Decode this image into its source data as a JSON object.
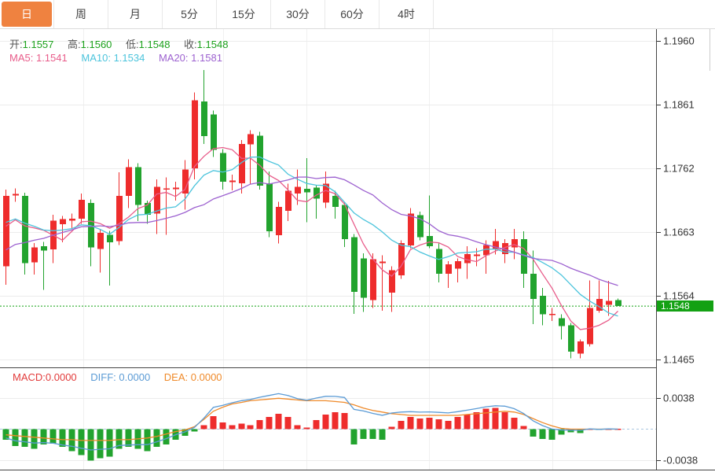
{
  "tabs": {
    "items": [
      {
        "label": "日",
        "active": true
      },
      {
        "label": "周",
        "active": false
      },
      {
        "label": "月",
        "active": false
      },
      {
        "label": "5分",
        "active": false
      },
      {
        "label": "15分",
        "active": false
      },
      {
        "label": "30分",
        "active": false
      },
      {
        "label": "60分",
        "active": false
      },
      {
        "label": "4时",
        "active": false
      }
    ]
  },
  "legend": {
    "open_label": "开:",
    "open": "1.1557",
    "high_label": "高:",
    "high": "1.1560",
    "low_label": "低:",
    "low": "1.1548",
    "close_label": "收:",
    "close": "1.1548",
    "ma5_label": "MA5:",
    "ma5": "1.1541",
    "ma10_label": "MA10:",
    "ma10": "1.1534",
    "ma20_label": "MA20:",
    "ma20": "1.1581"
  },
  "macd_legend": {
    "macd_label": "MACD:",
    "macd": "0.0000",
    "diff_label": "DIFF:",
    "diff": "0.0000",
    "dea_label": "DEA:",
    "dea": "0.0000"
  },
  "price_marker": {
    "value": "1.1548"
  },
  "colors": {
    "up": "#ee2c2c",
    "down": "#22a32e",
    "ma5": "#e85c8a",
    "ma10": "#4cc4dc",
    "ma20": "#9d62d0",
    "diff_line": "#5b9bd5",
    "dea_line": "#ef8a2a",
    "price": "#13a113",
    "tab_active": "#ef8240",
    "axis_text": "#333333",
    "grid": "#ececec",
    "dark_line": "#444444",
    "zero_dash": "#a9c7e0"
  },
  "chart_data": {
    "type": "candlestick",
    "title": "",
    "y_ticks": [
      1.196,
      1.1861,
      1.1762,
      1.1663,
      1.1564,
      1.1465
    ],
    "price_line": 1.1548,
    "ma_periods": [
      5,
      10,
      20
    ],
    "ma_seed_closes": [
      1.155,
      1.1558,
      1.1566,
      1.1575,
      1.1585,
      1.1595,
      1.1605,
      1.1615,
      1.163,
      1.1645,
      1.1668,
      1.168,
      1.1688,
      1.1692,
      1.1692,
      1.1672,
      1.1662,
      1.1655,
      1.1652
    ],
    "candles": [
      [
        1.161,
        1.1729,
        1.1581,
        1.1719
      ],
      [
        1.172,
        1.1731,
        1.171,
        1.1722
      ],
      [
        1.1719,
        1.1724,
        1.1597,
        1.1615
      ],
      [
        1.1616,
        1.1646,
        1.1597,
        1.1639
      ],
      [
        1.1641,
        1.1648,
        1.1573,
        1.1634
      ],
      [
        1.1636,
        1.169,
        1.1615,
        1.1681
      ],
      [
        1.1675,
        1.1688,
        1.1647,
        1.1683
      ],
      [
        1.1681,
        1.1692,
        1.1668,
        1.1684
      ],
      [
        1.1684,
        1.1723,
        1.1676,
        1.1713
      ],
      [
        1.1708,
        1.1714,
        1.161,
        1.1639
      ],
      [
        1.1637,
        1.1668,
        1.16,
        1.1662
      ],
      [
        1.1659,
        1.1665,
        1.158,
        1.1647
      ],
      [
        1.1649,
        1.1756,
        1.1643,
        1.1719
      ],
      [
        1.1719,
        1.1776,
        1.17,
        1.1764
      ],
      [
        1.1764,
        1.177,
        1.168,
        1.1705
      ],
      [
        1.1708,
        1.1712,
        1.1676,
        1.169
      ],
      [
        1.1692,
        1.1745,
        1.166,
        1.1733
      ],
      [
        1.1729,
        1.1748,
        1.1659,
        1.1731
      ],
      [
        1.173,
        1.1741,
        1.1712,
        1.1732
      ],
      [
        1.1723,
        1.1775,
        1.1698,
        1.176
      ],
      [
        1.1762,
        1.188,
        1.1745,
        1.1868
      ],
      [
        1.1866,
        1.1915,
        1.18,
        1.1812
      ],
      [
        1.1846,
        1.1852,
        1.178,
        1.1791
      ],
      [
        1.1786,
        1.1792,
        1.1729,
        1.1741
      ],
      [
        1.1741,
        1.1752,
        1.1728,
        1.1743
      ],
      [
        1.1739,
        1.1806,
        1.1723,
        1.18
      ],
      [
        1.1799,
        1.1821,
        1.1738,
        1.1815
      ],
      [
        1.1813,
        1.1819,
        1.1729,
        1.1735
      ],
      [
        1.1739,
        1.1757,
        1.1655,
        1.1664
      ],
      [
        1.1658,
        1.171,
        1.1645,
        1.1702
      ],
      [
        1.1696,
        1.1738,
        1.168,
        1.1727
      ],
      [
        1.1723,
        1.176,
        1.1705,
        1.1733
      ],
      [
        1.173,
        1.1778,
        1.1678,
        1.1725
      ],
      [
        1.1732,
        1.1736,
        1.1684,
        1.1715
      ],
      [
        1.1709,
        1.1757,
        1.17,
        1.1738
      ],
      [
        1.1719,
        1.1727,
        1.1684,
        1.1702
      ],
      [
        1.1705,
        1.171,
        1.164,
        1.1652
      ],
      [
        1.1655,
        1.166,
        1.1536,
        1.157
      ],
      [
        1.1622,
        1.163,
        1.1539,
        1.1561
      ],
      [
        1.1557,
        1.163,
        1.1545,
        1.1621
      ],
      [
        1.1615,
        1.1627,
        1.1541,
        1.1617
      ],
      [
        1.1569,
        1.161,
        1.1539,
        1.1604
      ],
      [
        1.1596,
        1.165,
        1.159,
        1.1646
      ],
      [
        1.1642,
        1.17,
        1.1638,
        1.1692
      ],
      [
        1.1689,
        1.1695,
        1.165,
        1.1655
      ],
      [
        1.1657,
        1.172,
        1.1638,
        1.1641
      ],
      [
        1.1637,
        1.1645,
        1.1585,
        1.1598
      ],
      [
        1.1598,
        1.1618,
        1.1576,
        1.1613
      ],
      [
        1.1606,
        1.1622,
        1.1585,
        1.1618
      ],
      [
        1.1615,
        1.1641,
        1.159,
        1.1629
      ],
      [
        1.1626,
        1.1638,
        1.161,
        1.1628
      ],
      [
        1.1627,
        1.165,
        1.1598,
        1.1643
      ],
      [
        1.1637,
        1.1668,
        1.1628,
        1.1649
      ],
      [
        1.1629,
        1.1652,
        1.1615,
        1.1646
      ],
      [
        1.1639,
        1.1668,
        1.1621,
        1.1652
      ],
      [
        1.1652,
        1.1664,
        1.1576,
        1.1598
      ],
      [
        1.1598,
        1.1634,
        1.152,
        1.1559
      ],
      [
        1.1564,
        1.1576,
        1.1518,
        1.1535
      ],
      [
        1.1534,
        1.1545,
        1.1525,
        1.1536
      ],
      [
        1.1529,
        1.1535,
        1.1496,
        1.1517
      ],
      [
        1.1518,
        1.1522,
        1.1467,
        1.1477
      ],
      [
        1.1474,
        1.1496,
        1.1467,
        1.1493
      ],
      [
        1.1489,
        1.1588,
        1.1485,
        1.1545
      ],
      [
        1.1541,
        1.1588,
        1.1538,
        1.1559
      ],
      [
        1.155,
        1.1587,
        1.1533,
        1.1556
      ],
      [
        1.1557,
        1.156,
        1.1548,
        1.1548
      ]
    ],
    "macd": {
      "y_ticks": [
        0.0038,
        -0.0038
      ],
      "hist": [
        -0.0013,
        -0.0021,
        -0.0022,
        -0.0024,
        -0.0019,
        -0.0018,
        -0.0022,
        -0.0027,
        -0.0032,
        -0.0039,
        -0.0036,
        -0.0034,
        -0.0024,
        -0.0022,
        -0.0024,
        -0.0027,
        -0.0022,
        -0.0019,
        -0.0013,
        -0.0008,
        -0.0003,
        0.0005,
        0.0016,
        0.0008,
        0.0005,
        0.0007,
        0.0005,
        0.0011,
        0.0015,
        0.0019,
        0.0015,
        0.0005,
        0.0002,
        0.0011,
        0.0018,
        0.0021,
        0.002,
        -0.0019,
        -0.0012,
        -0.0012,
        -0.0013,
        0.0003,
        0.001,
        0.0015,
        0.0013,
        0.0014,
        0.0012,
        0.001,
        0.0015,
        0.0018,
        0.0021,
        0.0025,
        0.0026,
        0.0021,
        0.0014,
        0.0004,
        -0.0009,
        -0.0012,
        -0.0013,
        -0.0007,
        -0.0004,
        -0.0005,
        0.0001,
        -0.0001,
        0.0001,
        0.0
      ],
      "dea": [
        -0.0007,
        -0.0008,
        -0.0009,
        -0.001,
        -0.0011,
        -0.0012,
        -0.0013,
        -0.0013,
        -0.0014,
        -0.0014,
        -0.0014,
        -0.0014,
        -0.0013,
        -0.0013,
        -0.0012,
        -0.0011,
        -0.0009,
        -0.0006,
        -0.0003,
        -0.0001,
        0.0003,
        0.0012,
        0.0022,
        0.0027,
        0.0031,
        0.0033,
        0.0035,
        0.0036,
        0.0037,
        0.0038,
        0.0037,
        0.0036,
        0.0035,
        0.0035,
        0.0035,
        0.0034,
        0.0033,
        0.003,
        0.0026,
        0.0023,
        0.0021,
        0.0019,
        0.0018,
        0.0017,
        0.0017,
        0.0017,
        0.0017,
        0.0017,
        0.0017,
        0.0018,
        0.0019,
        0.002,
        0.0021,
        0.0022,
        0.0021,
        0.0018,
        0.0013,
        0.0008,
        0.0004,
        0.0001,
        0.0,
        0.0,
        0.0,
        0.0,
        0.0,
        0.0
      ]
    }
  }
}
